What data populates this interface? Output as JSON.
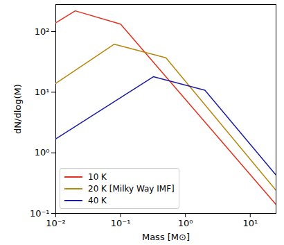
{
  "chart_data": {
    "type": "line",
    "x_label": "Mass [M⊙]",
    "y_label": "dN/dlog(M)",
    "log": true,
    "legend": "lower left",
    "xlim": [
      0.01,
      25
    ],
    "ylim": [
      0.1,
      280
    ],
    "xticks": [
      {
        "value": 0.01,
        "label": "10⁻²"
      },
      {
        "value": 0.1,
        "label": "10⁻¹"
      },
      {
        "value": 1,
        "label": "10⁰"
      },
      {
        "value": 10,
        "label": "10¹"
      }
    ],
    "yticks": [
      {
        "value": 0.1,
        "label": "10⁻¹"
      },
      {
        "value": 1,
        "label": "10⁰"
      },
      {
        "value": 10,
        "label": "10¹"
      },
      {
        "value": 100,
        "label": "10²"
      }
    ],
    "series": [
      {
        "name": "10 K",
        "color": "#e2311d",
        "x": [
          0.01,
          0.02,
          0.1,
          25
        ],
        "values": [
          140,
          220,
          133,
          0.14
        ]
      },
      {
        "name": "20 K [Milky Way IMF]",
        "color": "#b8860b",
        "x": [
          0.01,
          0.08,
          0.5,
          25
        ],
        "values": [
          14,
          62,
          37,
          0.24
        ]
      },
      {
        "name": "40 K",
        "color": "#1c1ca0",
        "x": [
          0.01,
          0.32,
          2.0,
          25
        ],
        "values": [
          1.7,
          18,
          10.8,
          0.43
        ]
      }
    ]
  }
}
